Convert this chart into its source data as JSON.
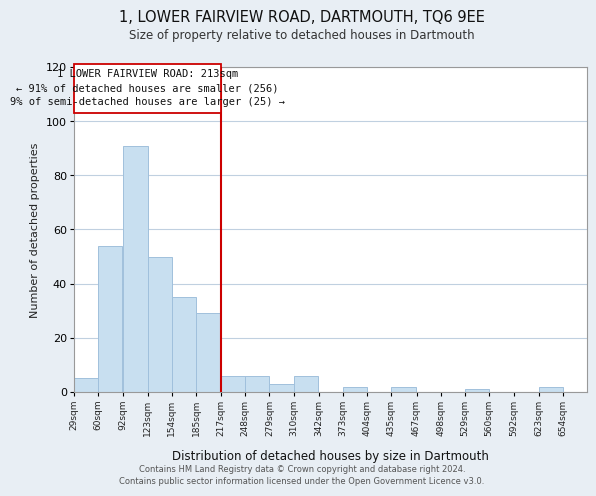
{
  "title": "1, LOWER FAIRVIEW ROAD, DARTMOUTH, TQ6 9EE",
  "subtitle": "Size of property relative to detached houses in Dartmouth",
  "xlabel": "Distribution of detached houses by size in Dartmouth",
  "ylabel": "Number of detached properties",
  "bar_color": "#c8dff0",
  "bar_edge_color": "#a0c0dc",
  "background_color": "#e8eef4",
  "plot_bg_color": "#ffffff",
  "grid_color": "#c0d0e0",
  "bins": [
    29,
    60,
    92,
    123,
    154,
    185,
    217,
    248,
    279,
    310,
    342,
    373,
    404,
    435,
    467,
    498,
    529,
    560,
    592,
    623,
    654
  ],
  "counts": [
    5,
    54,
    91,
    50,
    35,
    29,
    6,
    6,
    3,
    6,
    0,
    2,
    0,
    2,
    0,
    0,
    1,
    0,
    0,
    2,
    0
  ],
  "tick_labels": [
    "29sqm",
    "60sqm",
    "92sqm",
    "123sqm",
    "154sqm",
    "185sqm",
    "217sqm",
    "248sqm",
    "279sqm",
    "310sqm",
    "342sqm",
    "373sqm",
    "404sqm",
    "435sqm",
    "467sqm",
    "498sqm",
    "529sqm",
    "560sqm",
    "592sqm",
    "623sqm",
    "654sqm"
  ],
  "property_line_x": 217,
  "property_line_color": "#cc0000",
  "annotation_title": "1 LOWER FAIRVIEW ROAD: 213sqm",
  "annotation_line1": "← 91% of detached houses are smaller (256)",
  "annotation_line2": "9% of semi-detached houses are larger (25) →",
  "annotation_box_color": "#ffffff",
  "annotation_border_color": "#cc0000",
  "ylim": [
    0,
    120
  ],
  "footer1": "Contains HM Land Registry data © Crown copyright and database right 2024.",
  "footer2": "Contains public sector information licensed under the Open Government Licence v3.0."
}
